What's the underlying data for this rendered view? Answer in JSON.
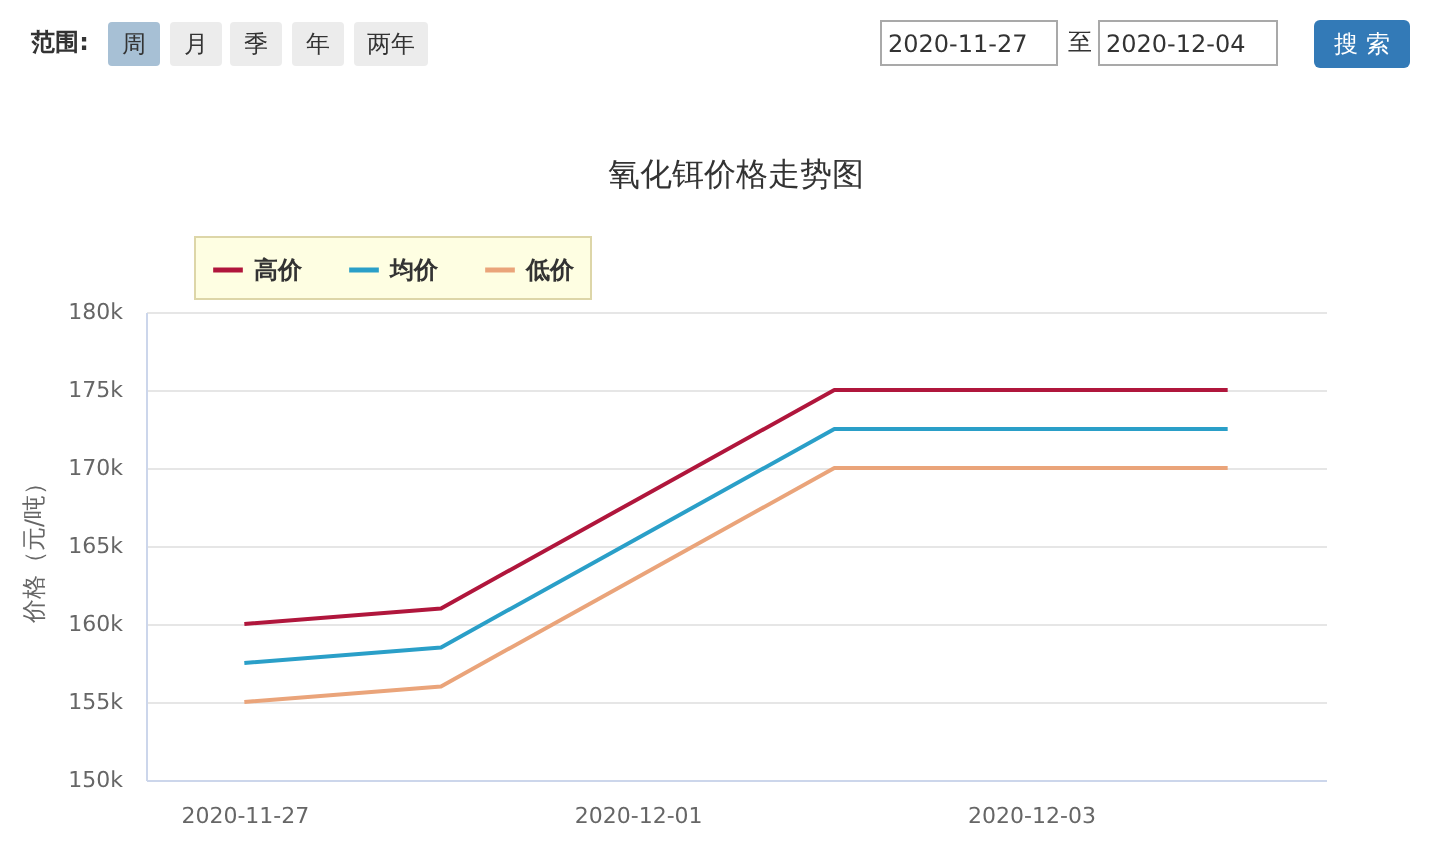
{
  "chart_data": {
    "type": "line",
    "title": "氧化铒价格走势图",
    "ylabel": "价格（元/吨）",
    "categories": [
      "2020-11-27",
      null,
      "2020-12-01",
      null,
      "2020-12-03",
      null
    ],
    "series": [
      {
        "name": "高价",
        "color": "#b0163c",
        "values": [
          160000,
          161000,
          168000,
          175000,
          175000,
          175000
        ]
      },
      {
        "name": "均价",
        "color": "#2a9fc8",
        "values": [
          157500,
          158500,
          165500,
          172500,
          172500,
          172500
        ]
      },
      {
        "name": "低价",
        "color": "#eaa47a",
        "values": [
          155000,
          156000,
          163000,
          170000,
          170000,
          170000
        ]
      }
    ],
    "ylim": [
      150000,
      180000
    ],
    "yticks": [
      {
        "value": 150000,
        "label": "150k"
      },
      {
        "value": 155000,
        "label": "155k"
      },
      {
        "value": 160000,
        "label": "160k"
      },
      {
        "value": 165000,
        "label": "165k"
      },
      {
        "value": 170000,
        "label": "170k"
      },
      {
        "value": 175000,
        "label": "175k"
      },
      {
        "value": 180000,
        "label": "180k"
      }
    ],
    "grid": "y",
    "legend": "top left",
    "annotations": [
      "范围:",
      "周",
      "月",
      "季",
      "年",
      "两年",
      "2020-11-27",
      "至",
      "2020-12-04",
      "搜 索"
    ]
  }
}
